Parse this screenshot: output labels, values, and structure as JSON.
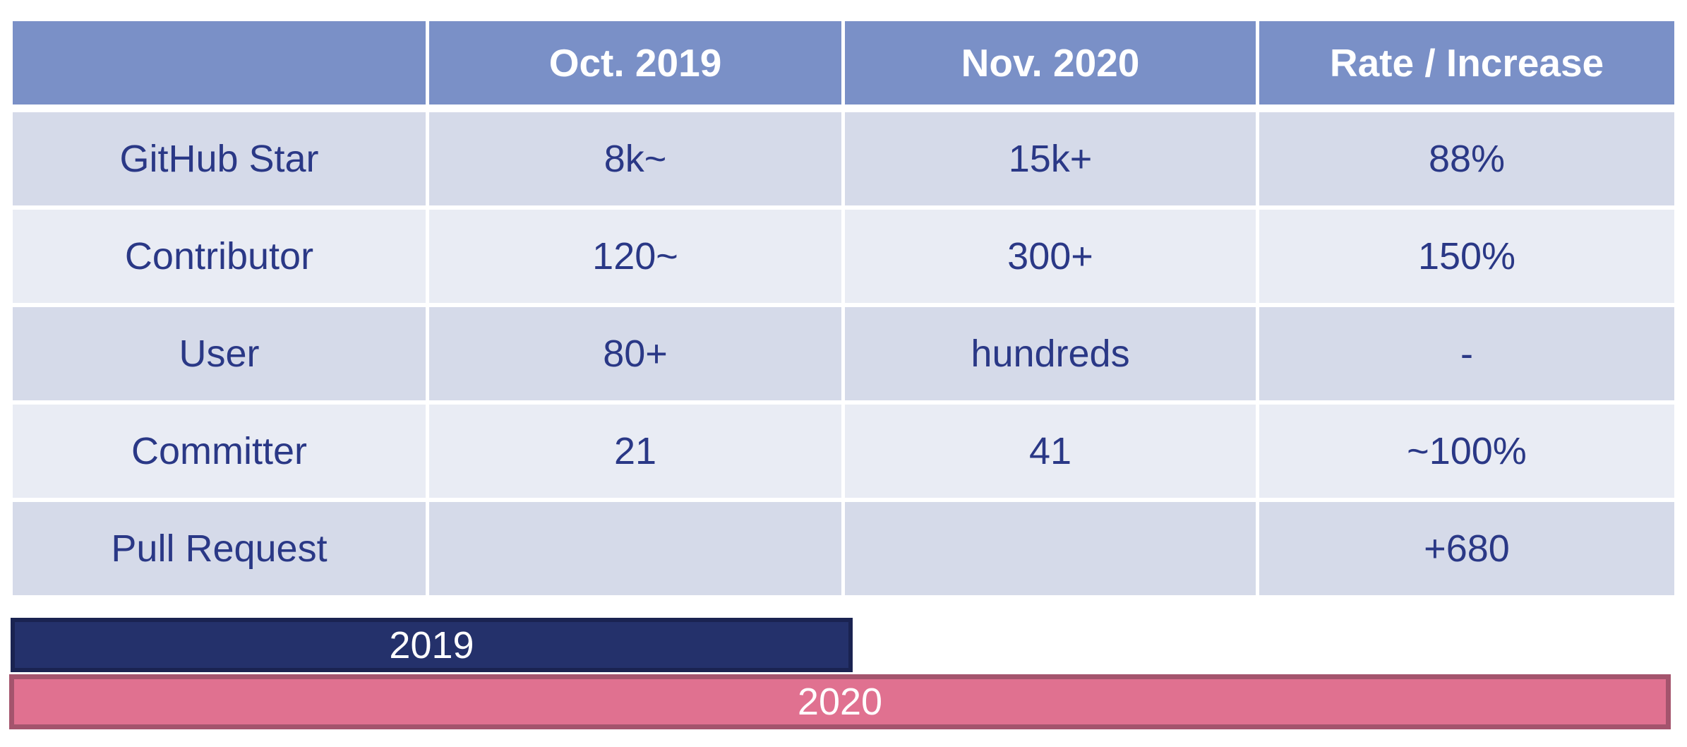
{
  "table": {
    "header": [
      "",
      "Oct. 2019",
      "Nov. 2020",
      "Rate / Increase"
    ],
    "rows": [
      {
        "cells": [
          "GitHub Star",
          "8k~",
          "15k+",
          "88%"
        ]
      },
      {
        "cells": [
          "Contributor",
          "120~",
          "300+",
          "150%"
        ]
      },
      {
        "cells": [
          "User",
          "80+",
          "hundreds",
          "-"
        ]
      },
      {
        "cells": [
          "Committer",
          "21",
          "41",
          "~100%"
        ]
      },
      {
        "cells": [
          "Pull Request",
          "",
          "",
          "+680"
        ]
      }
    ]
  },
  "timeline": {
    "bars": [
      {
        "label": "2019",
        "fill": "#24316B",
        "border": "#1A2351"
      },
      {
        "label": "2020",
        "fill": "#E07190",
        "border": "#A4546D"
      }
    ]
  },
  "colors": {
    "header_bg": "#7A90C7",
    "header_text": "#FFFFFF",
    "row_dark": "#D5DAE9",
    "row_light": "#E9ECF4",
    "cell_text": "#2A3886",
    "background": "#FFFFFF"
  },
  "chart_data": [
    {
      "type": "table",
      "columns": [
        "",
        "Oct. 2019",
        "Nov. 2020",
        "Rate / Increase"
      ],
      "rows": [
        [
          "GitHub Star",
          "8k~",
          "15k+",
          "88%"
        ],
        [
          "Contributor",
          "120~",
          "300+",
          "150%"
        ],
        [
          "User",
          "80+",
          "hundreds",
          "-"
        ],
        [
          "Committer",
          "21",
          "41",
          "~100%"
        ],
        [
          "Pull Request",
          "",
          "",
          "+680"
        ]
      ]
    },
    {
      "type": "bar",
      "orientation": "horizontal",
      "categories": [
        "2019",
        "2020"
      ],
      "relative_length": [
        0.51,
        1.0
      ],
      "bar_labels_inside": true,
      "colors": [
        "#24316B",
        "#E07190"
      ]
    }
  ]
}
